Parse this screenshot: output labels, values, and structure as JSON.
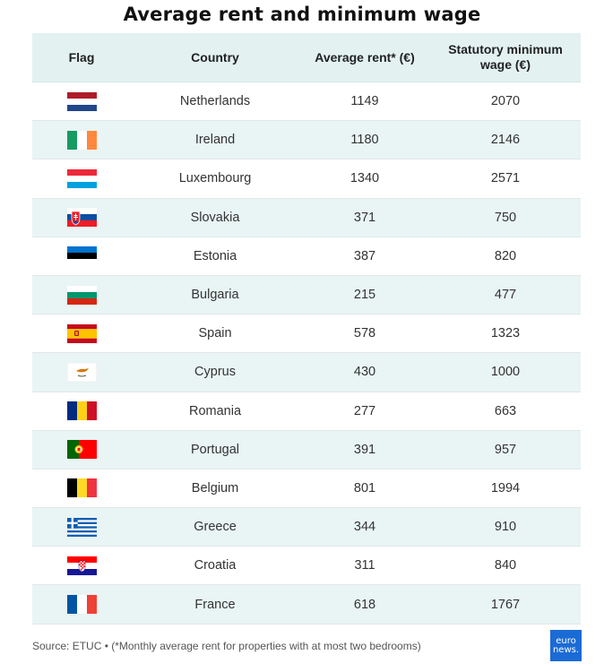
{
  "title": "Average rent and minimum wage",
  "headers": {
    "flag": "Flag",
    "country": "Country",
    "rent": "Average rent* (€)",
    "wage_line1": "Statutory minimum",
    "wage_line2": "wage (€)"
  },
  "rows": [
    {
      "country": "Netherlands",
      "rent": "1149",
      "wage": "2070",
      "flag_icon": "netherlands-flag"
    },
    {
      "country": "Ireland",
      "rent": "1180",
      "wage": "2146",
      "flag_icon": "ireland-flag"
    },
    {
      "country": "Luxembourg",
      "rent": "1340",
      "wage": "2571",
      "flag_icon": "luxembourg-flag"
    },
    {
      "country": "Slovakia",
      "rent": "371",
      "wage": "750",
      "flag_icon": "slovakia-flag"
    },
    {
      "country": "Estonia",
      "rent": "387",
      "wage": "820",
      "flag_icon": "estonia-flag"
    },
    {
      "country": "Bulgaria",
      "rent": "215",
      "wage": "477",
      "flag_icon": "bulgaria-flag"
    },
    {
      "country": "Spain",
      "rent": "578",
      "wage": "1323",
      "flag_icon": "spain-flag"
    },
    {
      "country": "Cyprus",
      "rent": "430",
      "wage": "1000",
      "flag_icon": "cyprus-flag"
    },
    {
      "country": "Romania",
      "rent": "277",
      "wage": "663",
      "flag_icon": "romania-flag"
    },
    {
      "country": "Portugal",
      "rent": "391",
      "wage": "957",
      "flag_icon": "portugal-flag"
    },
    {
      "country": "Belgium",
      "rent": "801",
      "wage": "1994",
      "flag_icon": "belgium-flag"
    },
    {
      "country": "Greece",
      "rent": "344",
      "wage": "910",
      "flag_icon": "greece-flag"
    },
    {
      "country": "Croatia",
      "rent": "311",
      "wage": "840",
      "flag_icon": "croatia-flag"
    },
    {
      "country": "France",
      "rent": "618",
      "wage": "1767",
      "flag_icon": "france-flag"
    }
  ],
  "footer": {
    "source": "Source: ETUC • (*Monthly average rent for properties with at most two bedrooms)"
  },
  "logo": {
    "line1": "euro",
    "line2": "news."
  }
}
